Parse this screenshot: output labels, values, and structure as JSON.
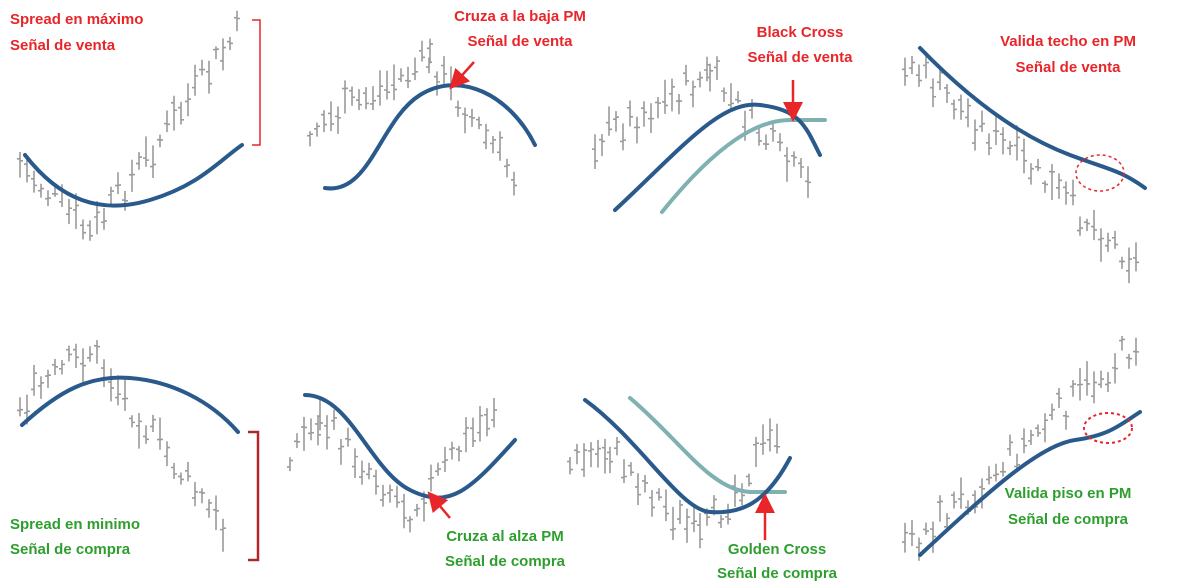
{
  "panels": [
    {
      "lines": [
        "Spread en máximo",
        "Señal de venta"
      ]
    },
    {
      "lines": [
        "Cruza a la baja PM",
        "Señal de venta"
      ]
    },
    {
      "lines": [
        "Black Cross",
        "Señal de venta"
      ]
    },
    {
      "lines": [
        "Valida techo en PM",
        "Señal de venta"
      ]
    },
    {
      "lines": [
        "Spread en minimo",
        "Señal de compra"
      ]
    },
    {
      "lines": [
        "Cruza al alza PM",
        "Señal de compra"
      ]
    },
    {
      "lines": [
        "Golden Cross",
        "Señal de compra"
      ]
    },
    {
      "lines": [
        "Valida piso en PM",
        "Señal de compra"
      ]
    }
  ]
}
